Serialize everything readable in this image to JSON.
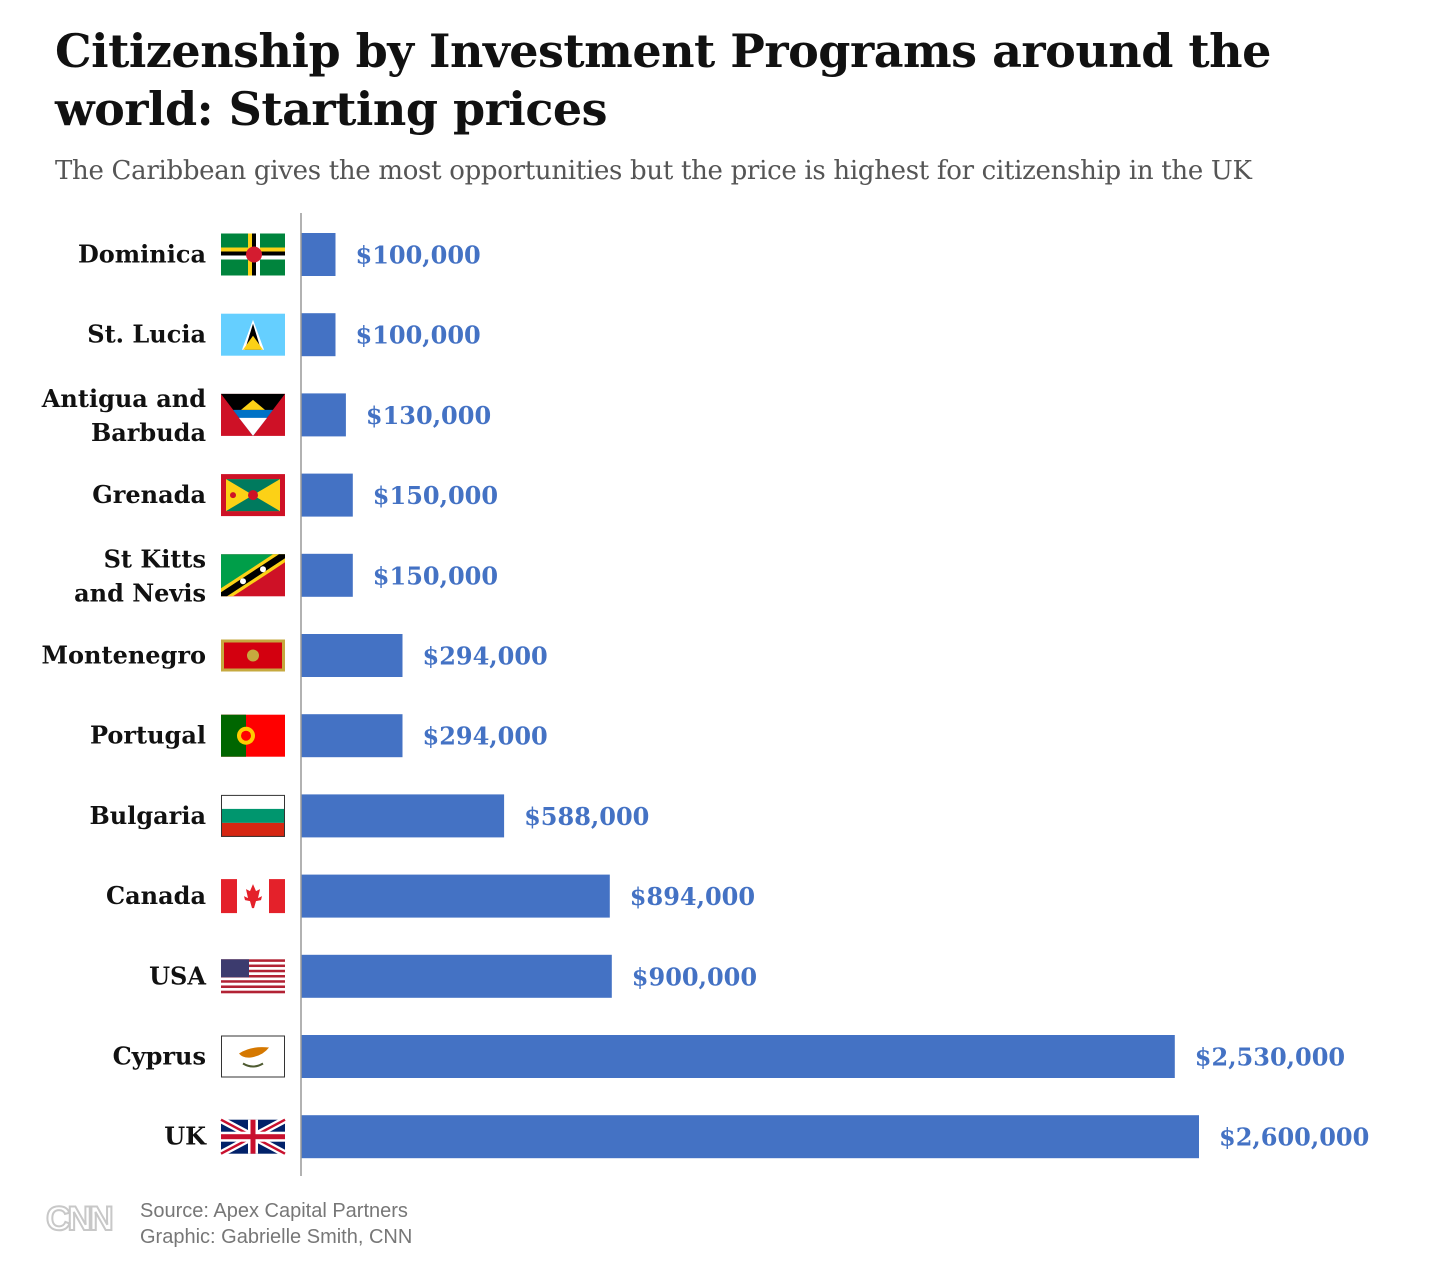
{
  "title": "Citizenship by Investment Programs around the world: Starting prices",
  "subtitle": "The Caribbean gives the most opportunities but the price is highest for citizenship in the UK",
  "source_line": "Source: Apex Capital Partners",
  "graphic_line": "Graphic: Gabrielle Smith, CNN",
  "logo_text": "CNN",
  "colors": {
    "bar": "#4472c4",
    "value_label": "#4472c4",
    "axis": "#999999"
  },
  "chart_data": {
    "type": "bar",
    "orientation": "horizontal",
    "title": "Citizenship by Investment Programs around the world: Starting prices",
    "subtitle": "The Caribbean gives the most opportunities but the price is highest for citizenship in the UK",
    "xlim": [
      0,
      2600000
    ],
    "grid": false,
    "categories": [
      [
        "Dominica"
      ],
      [
        "St. Lucia"
      ],
      [
        "Antigua and",
        "Barbuda"
      ],
      [
        "Grenada"
      ],
      [
        "St Kitts",
        "and Nevis"
      ],
      [
        "Montenegro"
      ],
      [
        "Portugal"
      ],
      [
        "Bulgaria"
      ],
      [
        "Canada"
      ],
      [
        "USA"
      ],
      [
        "Cyprus"
      ],
      [
        "UK"
      ]
    ],
    "flags": [
      "dominica-flag-icon",
      "st-lucia-flag-icon",
      "antigua-flag-icon",
      "grenada-flag-icon",
      "st-kitts-flag-icon",
      "montenegro-flag-icon",
      "portugal-flag-icon",
      "bulgaria-flag-icon",
      "canada-flag-icon",
      "usa-flag-icon",
      "cyprus-flag-icon",
      "uk-flag-icon"
    ],
    "values": [
      100000,
      100000,
      130000,
      150000,
      150000,
      294000,
      294000,
      588000,
      894000,
      900000,
      2530000,
      2600000
    ],
    "value_labels": [
      "$100,000",
      "$100,000",
      "$130,000",
      "$150,000",
      "$150,000",
      "$294,000",
      "$294,000",
      "$588,000",
      "$894,000",
      "$900,000",
      "$2,530,000",
      "$2,600,000"
    ]
  }
}
